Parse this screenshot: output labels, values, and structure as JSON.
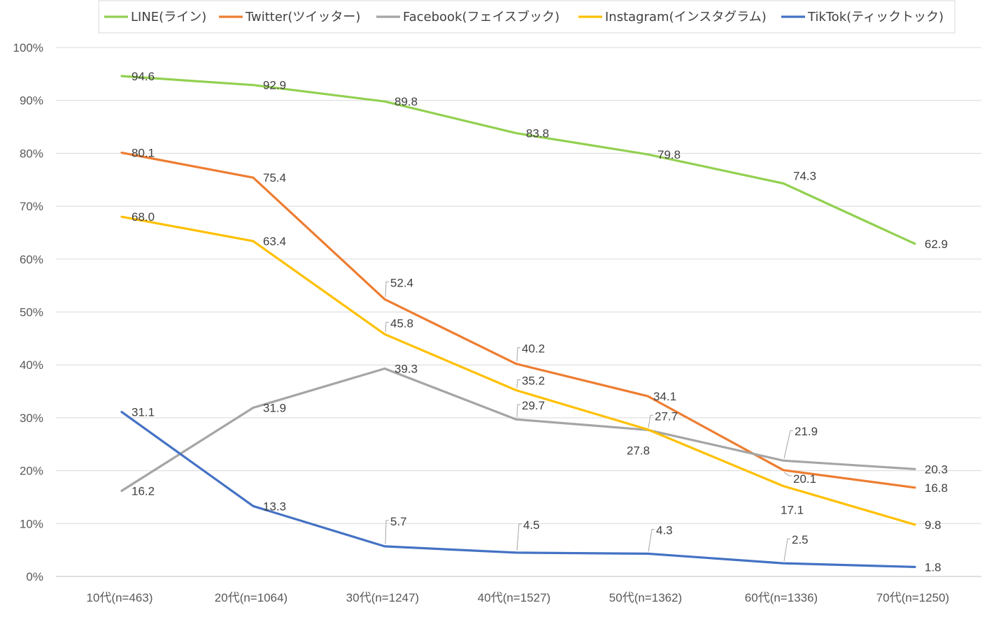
{
  "chart_data": {
    "type": "line",
    "categories": [
      "10代(n=463)",
      "20代(n=1064)",
      "30代(n=1247)",
      "40代(n=1527)",
      "50代(n=1362)",
      "60代(n=1336)",
      "70代(n=1250)"
    ],
    "y_ticks": [
      "0%",
      "10%",
      "20%",
      "30%",
      "40%",
      "50%",
      "60%",
      "70%",
      "80%",
      "90%",
      "100%"
    ],
    "ylim": [
      0,
      100
    ],
    "grid": true,
    "legend_position": "top",
    "series": [
      {
        "name": "LINE(ライン)",
        "color": "#92D050",
        "values": [
          94.6,
          92.9,
          89.8,
          83.8,
          79.8,
          74.3,
          62.9
        ],
        "labels": [
          "94.6",
          "92.9",
          "89.8",
          "83.8",
          "79.8",
          "74.3",
          "62.9"
        ]
      },
      {
        "name": "Twitter(ツイッター)",
        "color": "#ED7D31",
        "values": [
          80.1,
          75.4,
          52.4,
          40.2,
          34.1,
          20.1,
          16.8
        ],
        "labels": [
          "80.1",
          "75.4",
          "52.4",
          "40.2",
          "34.1",
          "20.1",
          "16.8"
        ]
      },
      {
        "name": "Facebook(フェイスブック)",
        "color": "#A5A5A5",
        "values": [
          16.2,
          31.9,
          39.3,
          29.7,
          27.7,
          21.9,
          20.3
        ],
        "labels": [
          "16.2",
          "31.9",
          "39.3",
          "29.7",
          "27.7",
          "21.9",
          "20.3"
        ]
      },
      {
        "name": "Instagram(インスタグラム)",
        "color": "#FFC000",
        "values": [
          68.0,
          63.4,
          45.8,
          35.2,
          27.8,
          17.1,
          9.8
        ],
        "labels": [
          "68.0",
          "63.4",
          "45.8",
          "35.2",
          "27.8",
          "17.1",
          "9.8"
        ]
      },
      {
        "name": "TikTok(ティックトック)",
        "color": "#4472C4",
        "values": [
          31.1,
          13.3,
          5.7,
          4.5,
          4.3,
          2.5,
          1.8
        ],
        "labels": [
          "31.1",
          "13.3",
          "5.7",
          "4.5",
          "4.3",
          "2.5",
          "1.8"
        ]
      }
    ]
  }
}
